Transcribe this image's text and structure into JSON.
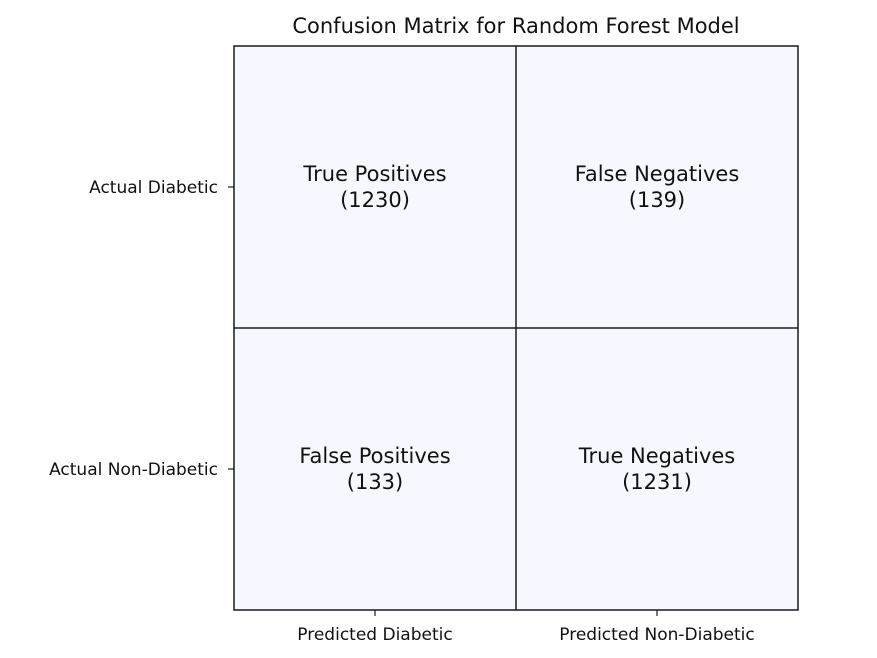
{
  "chart_data": {
    "type": "heatmap",
    "title": "Confusion Matrix for Random Forest Model",
    "xlabel": "",
    "ylabel": "",
    "x_categories": [
      "Predicted Diabetic",
      "Predicted Non-Diabetic"
    ],
    "y_categories": [
      "Actual Diabetic",
      "Actual Non-Diabetic"
    ],
    "cells": [
      {
        "row": 0,
        "col": 0,
        "label": "True Positives",
        "value": 1230
      },
      {
        "row": 0,
        "col": 1,
        "label": "False Negatives",
        "value": 139
      },
      {
        "row": 1,
        "col": 0,
        "label": "False Positives",
        "value": 133
      },
      {
        "row": 1,
        "col": 1,
        "label": "True Negatives",
        "value": 1231
      }
    ],
    "cell_color": "#f5f9ff",
    "grid_color": "#1a1a1a",
    "grid": true,
    "legend": "none"
  }
}
